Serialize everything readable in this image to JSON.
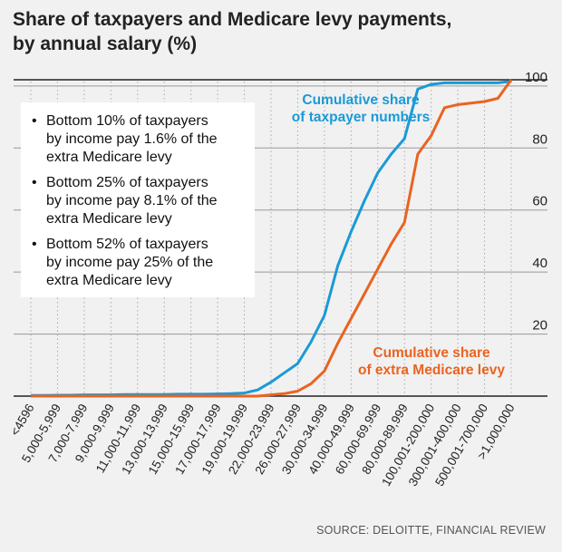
{
  "title_lines": [
    "Share of taxpayers and Medicare levy payments,",
    "by annual salary (%)"
  ],
  "info_box": {
    "bullets": [
      [
        "Bottom 10% of taxpayers",
        "by income pay 1.6% of the",
        "extra Medicare levy"
      ],
      [
        "Bottom 25% of taxpayers",
        "by income pay 8.1% of the",
        "extra Medicare levy"
      ],
      [
        "Bottom 52% of taxpayers",
        "by income pay 25% of the",
        "extra Medicare levy"
      ]
    ]
  },
  "source": "SOURCE: DELOITTE, FINANCIAL REVIEW",
  "chart_data": {
    "type": "line",
    "title": "Share of taxpayers and Medicare levy payments, by annual salary (%)",
    "categories": [
      "<4596",
      "5,000-5,999",
      "7,000-7,999",
      "9,000-9,999",
      "11,000-11,999",
      "13,000-13,999",
      "15,000-15,999",
      "17,000-17,999",
      "19,000-19,999",
      "22,000-23,999",
      "26,000-27,999",
      "30,000-34,999",
      "40,000-49,999",
      "60,000-69,999",
      "80,000-89,999",
      "100,001-200,000",
      "300,001-400,000",
      "500,001-700,000",
      ">1,000,000"
    ],
    "x": [
      0,
      0.5,
      1,
      1.5,
      2,
      2.5,
      3,
      3.5,
      4,
      4.5,
      5,
      5.5,
      6,
      6.5,
      7,
      7.5,
      8,
      8.5,
      9,
      9.5,
      10,
      10.5,
      11,
      11.5,
      12,
      12.5,
      13,
      13.5,
      14,
      14.5,
      15,
      15.5,
      16,
      16.5,
      17,
      17.5,
      18
    ],
    "ylim": [
      0,
      102
    ],
    "yticks": [
      20,
      40,
      60,
      80,
      100
    ],
    "grid": true,
    "series": [
      {
        "name": "Cumulative share of taxpayer numbers",
        "label_lines": [
          "Cumulative share",
          "of taxpayer numbers"
        ],
        "color": "#1a9ad6",
        "values": [
          0.2,
          0.2,
          0.3,
          0.3,
          0.4,
          0.4,
          0.4,
          0.5,
          0.5,
          0.5,
          0.5,
          0.6,
          0.6,
          0.6,
          0.7,
          0.8,
          1.0,
          2.0,
          4.5,
          7.5,
          10.5,
          17.5,
          26.0,
          42.0,
          53.0,
          63.0,
          72.0,
          78.0,
          83.0,
          99.0,
          100.5,
          101.0,
          101.0,
          101.0,
          101.0,
          101.0,
          101.5
        ]
      },
      {
        "name": "Cumulative share of extra Medicare levy",
        "label_lines": [
          "Cumulative share",
          "of extra Medicare levy"
        ],
        "color": "#ea6320",
        "values": [
          0,
          0,
          0,
          0,
          0,
          0,
          0,
          0,
          0,
          0,
          0,
          0,
          0,
          0,
          0,
          0,
          0,
          0,
          0.4,
          0.8,
          1.6,
          4.0,
          8.1,
          17.0,
          25.0,
          33.0,
          41.0,
          49.0,
          56.0,
          78.0,
          84.0,
          93.0,
          94.0,
          94.5,
          95.0,
          96.0,
          102.0
        ]
      }
    ]
  }
}
